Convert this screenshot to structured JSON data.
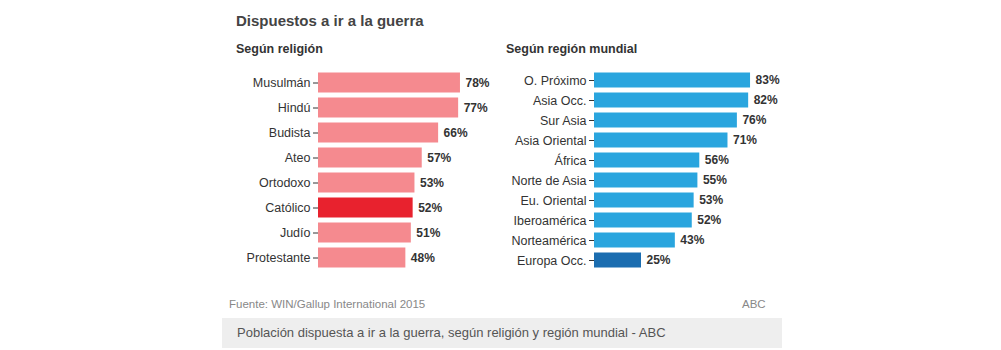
{
  "title": "Dispuestos a ir a la guerra",
  "source": "Fuente: WIN/Gallup International 2015",
  "credit": "ABC",
  "caption": "Población dispuesta a ir a la guerra, según religión y región mundial - ABC",
  "chart_data": [
    {
      "type": "bar",
      "title": "Según religión",
      "orientation": "horizontal",
      "categories": [
        "Musulmán",
        "Hindú",
        "Budista",
        "Ateo",
        "Ortodoxo",
        "Católico",
        "Judío",
        "Protestante"
      ],
      "values": [
        78,
        77,
        66,
        57,
        53,
        52,
        51,
        48
      ],
      "value_labels": [
        "78%",
        "77%",
        "66%",
        "57%",
        "53%",
        "52%",
        "51%",
        "48%"
      ],
      "colors": [
        "#f58a8f",
        "#f58a8f",
        "#f58a8f",
        "#f58a8f",
        "#f58a8f",
        "#e8222e",
        "#f58a8f",
        "#f58a8f"
      ],
      "xlim": [
        0,
        100
      ],
      "tick_labels": "y",
      "data_labels": true
    },
    {
      "type": "bar",
      "title": "Según región mundial",
      "orientation": "horizontal",
      "categories": [
        "O. Próximo",
        "Asia Occ.",
        "Sur Asia",
        "Asia Oriental",
        "África",
        "Norte de Asia",
        "Eu. Oriental",
        "Iberoamérica",
        "Norteamérica",
        "Europa Occ."
      ],
      "values": [
        83,
        82,
        76,
        71,
        56,
        55,
        53,
        52,
        43,
        25
      ],
      "value_labels": [
        "83%",
        "82%",
        "76%",
        "71%",
        "56%",
        "55%",
        "53%",
        "52%",
        "43%",
        "25%"
      ],
      "colors": [
        "#2aa5de",
        "#2aa5de",
        "#2aa5de",
        "#2aa5de",
        "#2aa5de",
        "#2aa5de",
        "#2aa5de",
        "#2aa5de",
        "#2aa5de",
        "#1b6db0"
      ],
      "xlim": [
        0,
        100
      ],
      "tick_labels": "y",
      "data_labels": true
    }
  ]
}
